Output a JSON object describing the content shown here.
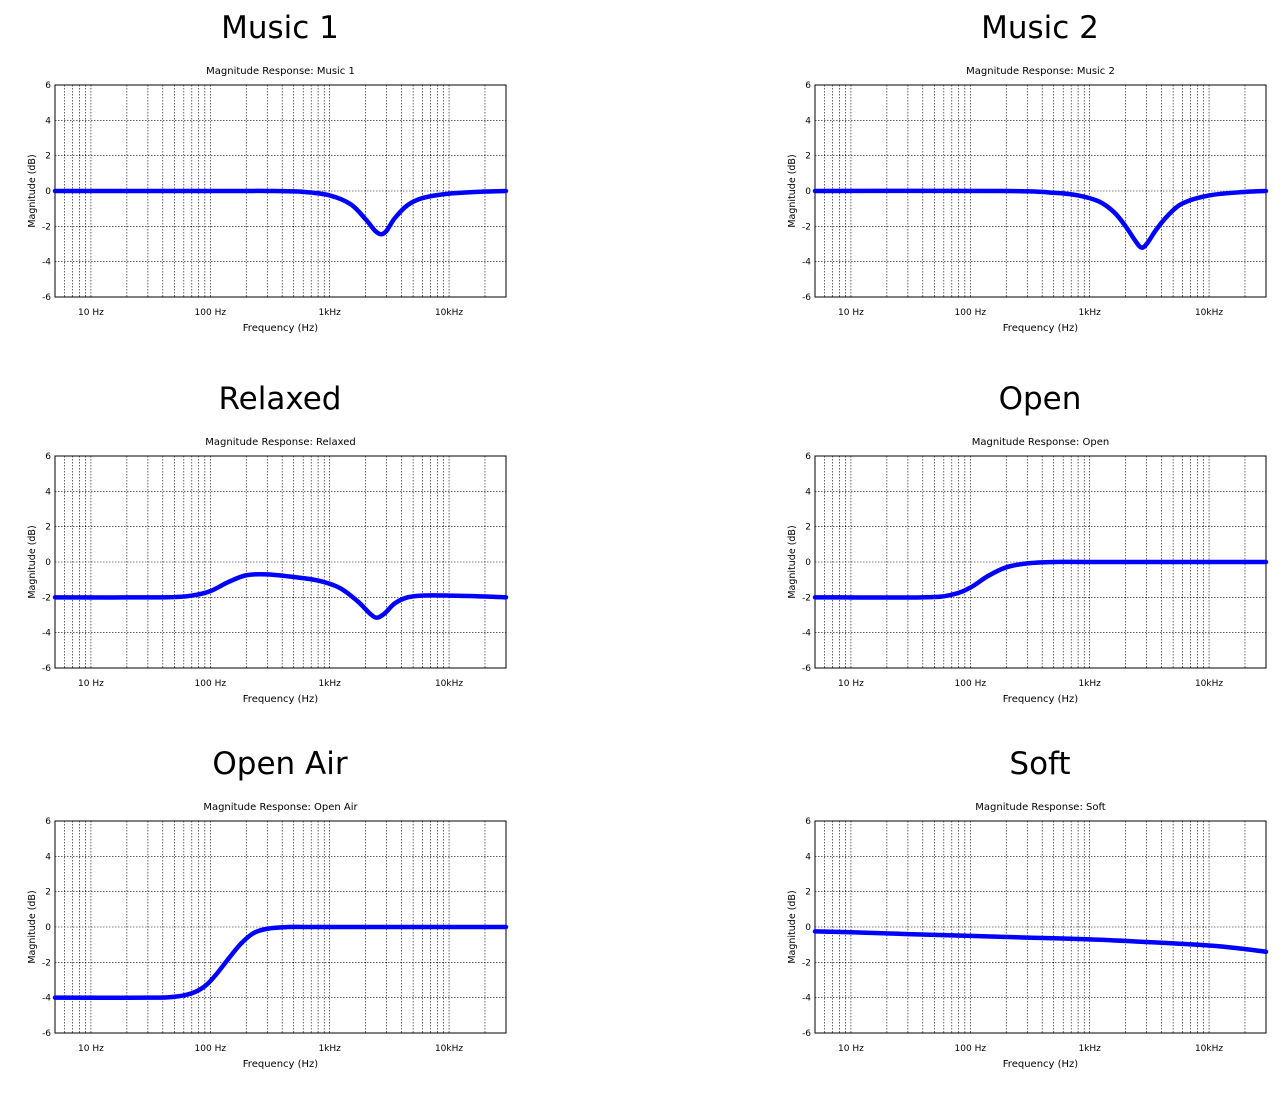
{
  "chart_data": [
    {
      "type": "line",
      "heading": "Music 1",
      "title": "Magnitude Response: Music 1",
      "xlabel": "Frequency (Hz)",
      "ylabel": "Magnitude (dB)",
      "xscale": "log",
      "xlim": [
        5,
        30000
      ],
      "ylim": [
        -6,
        6
      ],
      "xticks": [
        10,
        100,
        1000,
        10000
      ],
      "xtick_labels": [
        "10 Hz",
        "100 Hz",
        "1kHz",
        "10kHz"
      ],
      "yticks": [
        6,
        4,
        2,
        0,
        -2,
        -4,
        -6
      ],
      "ytick_labels": [
        "6",
        "4",
        "2",
        "0",
        "-2",
        "-4",
        "-6"
      ],
      "grid": true,
      "line_color": "#0000ff",
      "x": [
        5,
        100,
        300,
        600,
        1000,
        1500,
        2000,
        2400,
        2700,
        3000,
        3500,
        4500,
        6000,
        10000,
        20000,
        30000
      ],
      "y": [
        0,
        0,
        0,
        -0.05,
        -0.25,
        -0.75,
        -1.6,
        -2.25,
        -2.45,
        -2.25,
        -1.55,
        -0.8,
        -0.4,
        -0.15,
        -0.03,
        0
      ]
    },
    {
      "type": "line",
      "heading": "Music 2",
      "title": "Magnitude Response: Music 2",
      "xlabel": "Frequency (Hz)",
      "ylabel": "Magnitude (dB)",
      "xscale": "log",
      "xlim": [
        5,
        30000
      ],
      "ylim": [
        -6,
        6
      ],
      "xticks": [
        10,
        100,
        1000,
        10000
      ],
      "xtick_labels": [
        "10 Hz",
        "100 Hz",
        "1kHz",
        "10kHz"
      ],
      "yticks": [
        6,
        4,
        2,
        0,
        -2,
        -4,
        -6
      ],
      "ytick_labels": [
        "6",
        "4",
        "2",
        "0",
        "-2",
        "-4",
        "-6"
      ],
      "grid": true,
      "line_color": "#0000ff",
      "x": [
        5,
        200,
        500,
        800,
        1200,
        1600,
        2000,
        2400,
        2700,
        3000,
        3600,
        4500,
        6000,
        10000,
        20000,
        30000
      ],
      "y": [
        0,
        0,
        -0.1,
        -0.25,
        -0.6,
        -1.2,
        -2.0,
        -2.8,
        -3.2,
        -3.0,
        -2.2,
        -1.4,
        -0.7,
        -0.25,
        -0.05,
        0
      ]
    },
    {
      "type": "line",
      "heading": "Relaxed",
      "title": "Magnitude Response: Relaxed",
      "xlabel": "Frequency (Hz)",
      "ylabel": "Magnitude (dB)",
      "xscale": "log",
      "xlim": [
        5,
        30000
      ],
      "ylim": [
        -6,
        6
      ],
      "xticks": [
        10,
        100,
        1000,
        10000
      ],
      "xtick_labels": [
        "10 Hz",
        "100 Hz",
        "1kHz",
        "10kHz"
      ],
      "yticks": [
        6,
        4,
        2,
        0,
        -2,
        -4,
        -6
      ],
      "ytick_labels": [
        "6",
        "4",
        "2",
        "0",
        "-2",
        "-4",
        "-6"
      ],
      "grid": true,
      "line_color": "#0000ff",
      "x": [
        5,
        40,
        70,
        100,
        140,
        200,
        300,
        500,
        800,
        1200,
        1700,
        2200,
        2500,
        2900,
        3500,
        4500,
        6000,
        10000,
        20000,
        30000
      ],
      "y": [
        -2,
        -2,
        -1.9,
        -1.65,
        -1.15,
        -0.75,
        -0.7,
        -0.85,
        -1.05,
        -1.45,
        -2.2,
        -2.95,
        -3.15,
        -2.9,
        -2.35,
        -2.0,
        -1.9,
        -1.9,
        -1.95,
        -2
      ]
    },
    {
      "type": "line",
      "heading": "Open",
      "title": "Magnitude Response: Open",
      "xlabel": "Frequency (Hz)",
      "ylabel": "Magnitude (dB)",
      "xscale": "log",
      "xlim": [
        5,
        30000
      ],
      "ylim": [
        -6,
        6
      ],
      "xticks": [
        10,
        100,
        1000,
        10000
      ],
      "xtick_labels": [
        "10 Hz",
        "100 Hz",
        "1kHz",
        "10kHz"
      ],
      "yticks": [
        6,
        4,
        2,
        0,
        -2,
        -4,
        -6
      ],
      "ytick_labels": [
        "6",
        "4",
        "2",
        "0",
        "-2",
        "-4",
        "-6"
      ],
      "grid": true,
      "line_color": "#0000ff",
      "x": [
        5,
        40,
        70,
        100,
        140,
        200,
        300,
        500,
        1000,
        10000,
        30000
      ],
      "y": [
        -2,
        -2,
        -1.85,
        -1.45,
        -0.8,
        -0.3,
        -0.08,
        0,
        0,
        0,
        0
      ]
    },
    {
      "type": "line",
      "heading": "Open Air",
      "title": "Magnitude Response: Open Air",
      "xlabel": "Frequency (Hz)",
      "ylabel": "Magnitude (dB)",
      "xscale": "log",
      "xlim": [
        5,
        30000
      ],
      "ylim": [
        -6,
        6
      ],
      "xticks": [
        10,
        100,
        1000,
        10000
      ],
      "xtick_labels": [
        "10 Hz",
        "100 Hz",
        "1kHz",
        "10kHz"
      ],
      "yticks": [
        6,
        4,
        2,
        0,
        -2,
        -4,
        -6
      ],
      "ytick_labels": [
        "6",
        "4",
        "2",
        "0",
        "-2",
        "-4",
        "-6"
      ],
      "grid": true,
      "line_color": "#0000ff",
      "x": [
        5,
        30,
        50,
        70,
        90,
        110,
        140,
        180,
        230,
        300,
        450,
        700,
        1000,
        10000,
        30000
      ],
      "y": [
        -4,
        -4,
        -3.95,
        -3.75,
        -3.35,
        -2.75,
        -1.85,
        -0.95,
        -0.35,
        -0.1,
        0,
        0,
        0,
        0,
        0
      ]
    },
    {
      "type": "line",
      "heading": "Soft",
      "title": "Magnitude Response: Soft",
      "xlabel": "Frequency (Hz)",
      "ylabel": "Magnitude (dB)",
      "xscale": "log",
      "xlim": [
        5,
        30000
      ],
      "ylim": [
        -6,
        6
      ],
      "xticks": [
        10,
        100,
        1000,
        10000
      ],
      "xtick_labels": [
        "10 Hz",
        "100 Hz",
        "1kHz",
        "10kHz"
      ],
      "yticks": [
        6,
        4,
        2,
        0,
        -2,
        -4,
        -6
      ],
      "ytick_labels": [
        "6",
        "4",
        "2",
        "0",
        "-2",
        "-4",
        "-6"
      ],
      "grid": true,
      "line_color": "#0000ff",
      "x": [
        5,
        10,
        30,
        100,
        300,
        1000,
        3000,
        10000,
        20000,
        30000
      ],
      "y": [
        -0.25,
        -0.3,
        -0.4,
        -0.5,
        -0.6,
        -0.7,
        -0.85,
        -1.05,
        -1.25,
        -1.4
      ]
    }
  ]
}
